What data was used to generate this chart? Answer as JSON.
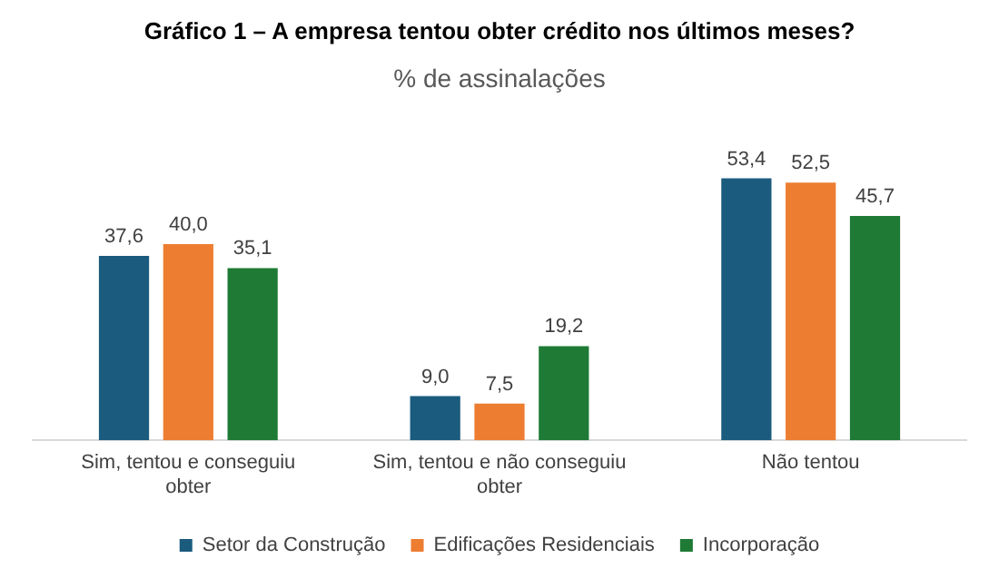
{
  "chart_data": {
    "type": "bar",
    "title": "Gráfico 1 – A empresa tentou obter crédito nos últimos meses?",
    "subtitle": "% de assinalações",
    "categories": [
      "Sim, tentou e conseguiu obter",
      "Sim, tentou e não conseguiu obter",
      "Não tentou"
    ],
    "series": [
      {
        "name": "Setor da Construção",
        "color": "#1b5b7e",
        "values": [
          37.6,
          9.0,
          53.4
        ],
        "value_labels": [
          "37,6",
          "9,0",
          "53,4"
        ]
      },
      {
        "name": "Edificações Residenciais",
        "color": "#ed7d31",
        "values": [
          40.0,
          7.5,
          52.5
        ],
        "value_labels": [
          "40,0",
          "7,5",
          "52,5"
        ]
      },
      {
        "name": "Incorporação",
        "color": "#1e7a35",
        "values": [
          35.1,
          19.2,
          45.7
        ],
        "value_labels": [
          "35,1",
          "19,2",
          "45,7"
        ]
      }
    ],
    "legend": "bottom",
    "grid": false
  }
}
